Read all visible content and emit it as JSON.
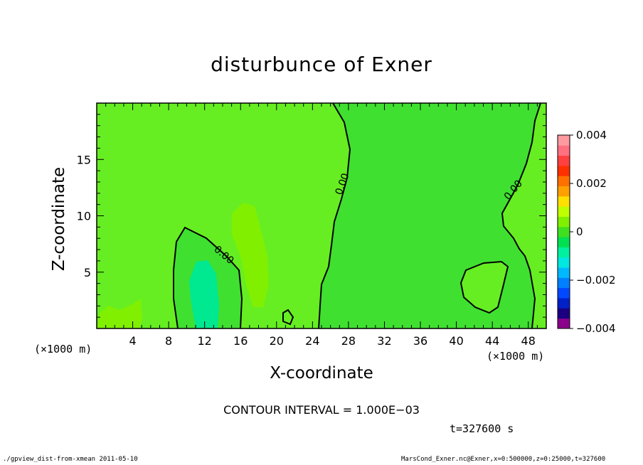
{
  "chart_data": {
    "type": "heatmap",
    "title": "disturbunce of Exner",
    "xlabel": "X-coordinate",
    "ylabel": "Z-coordinate",
    "x_unit_left": "(×1000 m)",
    "x_unit_right": "(×1000 m)",
    "xlim": [
      0,
      50
    ],
    "ylim": [
      0,
      20
    ],
    "x_ticks": [
      4,
      8,
      12,
      16,
      20,
      24,
      28,
      32,
      36,
      40,
      44,
      48
    ],
    "y_ticks": [
      5,
      10,
      15
    ],
    "colorbar": {
      "range": [
        -0.004,
        0.004
      ],
      "tick_labels": [
        {
          "value": 0.004,
          "label": "0.004"
        },
        {
          "value": 0.002,
          "label": "0.002"
        },
        {
          "value": 0,
          "label": "0"
        },
        {
          "value": -0.002,
          "label": "−0.002"
        },
        {
          "value": -0.004,
          "label": "−0.004"
        }
      ],
      "colors": [
        "#8b008b",
        "#1a0080",
        "#0020c8",
        "#0048ff",
        "#0080ff",
        "#00b8ff",
        "#00e8e0",
        "#00f0a0",
        "#00e050",
        "#40e020",
        "#80f000",
        "#c0ff00",
        "#ffe000",
        "#ffa000",
        "#ff7000",
        "#ff3000",
        "#ff4040",
        "#ff7080",
        "#ff9aa0"
      ]
    },
    "contour_labels": [
      "0.00",
      "0.00",
      "0.00"
    ],
    "contour_interval": "CONTOUR INTERVAL = 1.000E−03",
    "time": "t=327600 s"
  },
  "footer": {
    "left": "./gpview_dist-from-xmean  2011-05-10",
    "right": "MarsCond_Exner.nc@Exner,x=0:500000,z=0:25000,t=327600"
  },
  "colors": {
    "background": "#66ee22",
    "positive_region": "#40e030",
    "negative_region": "#00e890"
  }
}
